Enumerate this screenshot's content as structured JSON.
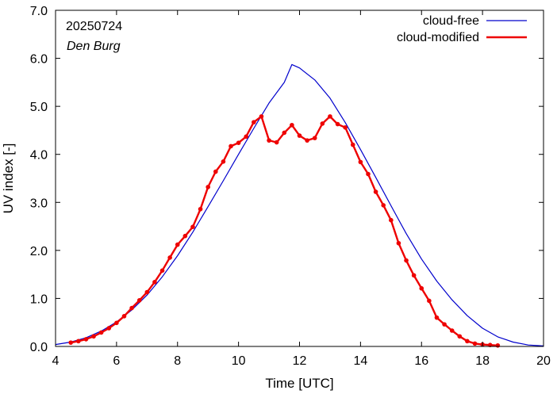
{
  "chart_data": {
    "type": "line",
    "title": "",
    "xlabel": "Time  [UTC]",
    "ylabel": "UV index  [-]",
    "xlim": [
      4,
      20
    ],
    "ylim": [
      0.0,
      7.0
    ],
    "x_ticks": [
      4,
      6,
      8,
      10,
      12,
      14,
      16,
      18,
      20
    ],
    "x_tick_labels": [
      "4",
      "6",
      "8",
      "10",
      "12",
      "14",
      "16",
      "18",
      "20"
    ],
    "y_ticks": [
      0.0,
      1.0,
      2.0,
      3.0,
      4.0,
      5.0,
      6.0,
      7.0
    ],
    "y_tick_labels": [
      "0.0",
      "1.0",
      "2.0",
      "3.0",
      "4.0",
      "5.0",
      "6.0",
      "7.0"
    ],
    "grid": false,
    "legend": "top-right",
    "annotations": {
      "date": "20250724",
      "location": "Den Burg"
    },
    "series": [
      {
        "name": "cloud-free",
        "color": "#0000cc",
        "markers": false,
        "x": [
          4.0,
          4.5,
          5.0,
          5.5,
          6.0,
          6.5,
          7.0,
          7.5,
          8.0,
          8.5,
          9.0,
          9.5,
          10.0,
          10.5,
          11.0,
          11.5,
          11.75,
          12.0,
          12.5,
          13.0,
          13.5,
          14.0,
          14.5,
          15.0,
          15.5,
          16.0,
          16.5,
          17.0,
          17.5,
          18.0,
          18.5,
          19.0,
          19.5,
          20.0
        ],
        "y": [
          0.04,
          0.09,
          0.18,
          0.32,
          0.51,
          0.76,
          1.07,
          1.45,
          1.89,
          2.38,
          2.91,
          3.45,
          4.0,
          4.54,
          5.07,
          5.5,
          5.87,
          5.8,
          5.55,
          5.17,
          4.66,
          4.1,
          3.52,
          2.93,
          2.35,
          1.82,
          1.36,
          0.97,
          0.64,
          0.38,
          0.2,
          0.09,
          0.03,
          0.01
        ]
      },
      {
        "name": "cloud-modified",
        "color": "#ee0000",
        "markers": true,
        "x": [
          4.5,
          4.75,
          5.0,
          5.25,
          5.5,
          5.75,
          6.0,
          6.25,
          6.5,
          6.75,
          7.0,
          7.25,
          7.5,
          7.75,
          8.0,
          8.25,
          8.5,
          8.75,
          9.0,
          9.25,
          9.5,
          9.75,
          10.0,
          10.25,
          10.5,
          10.75,
          11.0,
          11.25,
          11.5,
          11.75,
          12.0,
          12.25,
          12.5,
          12.75,
          13.0,
          13.25,
          13.5,
          13.75,
          14.0,
          14.25,
          14.5,
          14.75,
          15.0,
          15.25,
          15.5,
          15.75,
          16.0,
          16.25,
          16.5,
          16.75,
          17.0,
          17.25,
          17.5,
          17.75,
          18.0,
          18.25,
          18.5
        ],
        "y": [
          0.08,
          0.11,
          0.15,
          0.21,
          0.29,
          0.38,
          0.49,
          0.63,
          0.8,
          0.96,
          1.13,
          1.34,
          1.58,
          1.85,
          2.12,
          2.3,
          2.49,
          2.86,
          3.32,
          3.64,
          3.85,
          4.17,
          4.24,
          4.37,
          4.67,
          4.79,
          4.29,
          4.25,
          4.45,
          4.61,
          4.39,
          4.29,
          4.34,
          4.64,
          4.79,
          4.63,
          4.56,
          4.2,
          3.84,
          3.59,
          3.22,
          2.94,
          2.63,
          2.15,
          1.79,
          1.48,
          1.21,
          0.95,
          0.6,
          0.46,
          0.33,
          0.21,
          0.11,
          0.06,
          0.04,
          0.03,
          0.02
        ]
      }
    ]
  }
}
